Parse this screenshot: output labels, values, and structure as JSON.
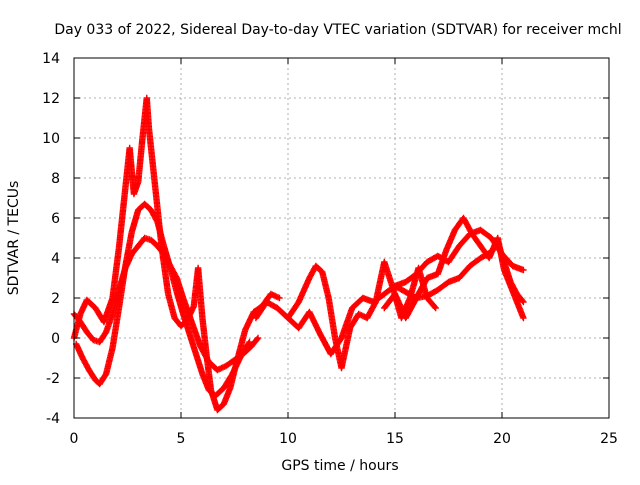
{
  "chart_data": {
    "type": "scatter",
    "title": "Day 033 of 2022, Sidereal Day-to-day VTEC variation (SDTVAR) for receiver mchl",
    "xlabel": "GPS time / hours",
    "ylabel": "SDTVAR / TECUs",
    "xlim": [
      0,
      25
    ],
    "ylim": [
      -4,
      14
    ],
    "xticks": [
      0,
      5,
      10,
      15,
      20,
      25
    ],
    "yticks": [
      -4,
      -2,
      0,
      2,
      4,
      6,
      8,
      10,
      12,
      14
    ],
    "grid": true,
    "legend": "none",
    "marker": "+",
    "marker_color": "#ff0000",
    "series": [
      {
        "name": "satellite-track-1",
        "x": [
          0.0,
          0.3,
          0.6,
          0.9,
          1.2,
          1.5,
          1.8,
          2.1,
          2.4,
          2.7,
          3.0,
          3.3,
          3.6,
          3.9,
          4.2,
          4.5,
          4.8,
          5.1,
          5.5,
          5.9,
          6.3,
          6.7,
          7.1,
          7.5,
          7.9,
          8.3,
          8.6
        ],
        "y": [
          1.2,
          0.8,
          0.3,
          -0.1,
          -0.2,
          0.3,
          1.2,
          2.4,
          3.5,
          4.2,
          4.6,
          5.0,
          4.9,
          4.6,
          4.2,
          3.6,
          3.0,
          2.0,
          0.8,
          -0.4,
          -1.2,
          -1.6,
          -1.4,
          -1.1,
          -0.8,
          -0.4,
          0.0
        ]
      },
      {
        "name": "satellite-track-2",
        "x": [
          0.1,
          0.4,
          0.7,
          1.0,
          1.2,
          1.5,
          1.8,
          2.1,
          2.4,
          2.7,
          3.0,
          3.3,
          3.6,
          3.9,
          4.2,
          4.5,
          4.8,
          5.1,
          5.4,
          5.7,
          6.0,
          6.3,
          6.6,
          7.0,
          7.4,
          7.8,
          8.2
        ],
        "y": [
          -0.3,
          -1.0,
          -1.6,
          -2.1,
          -2.3,
          -1.8,
          -0.5,
          1.5,
          3.6,
          5.3,
          6.4,
          6.7,
          6.4,
          5.8,
          4.6,
          3.5,
          2.3,
          1.2,
          0.2,
          -0.8,
          -1.8,
          -2.6,
          -2.9,
          -2.5,
          -1.8,
          -0.9,
          -0.2
        ]
      },
      {
        "name": "satellite-track-3",
        "x": [
          0.0,
          0.3,
          0.6,
          1.0,
          1.4,
          1.8,
          2.1,
          2.4,
          2.6,
          2.8,
          3.0,
          3.2,
          3.4,
          3.5,
          3.7,
          3.9,
          4.1,
          4.4,
          4.7,
          5.0,
          5.3,
          5.6,
          5.8,
          6.0,
          6.2,
          6.4,
          6.7,
          7.0,
          7.3,
          7.6,
          8.0,
          8.4,
          8.8,
          9.2,
          9.6
        ],
        "y": [
          0.0,
          1.2,
          1.9,
          1.5,
          0.8,
          2.0,
          4.5,
          7.5,
          9.5,
          7.2,
          7.8,
          10.0,
          12.0,
          10.5,
          8.5,
          6.5,
          4.5,
          2.2,
          1.0,
          0.6,
          0.9,
          1.6,
          3.5,
          1.0,
          -0.9,
          -2.6,
          -3.6,
          -3.3,
          -2.5,
          -1.2,
          0.4,
          1.3,
          1.6,
          2.2,
          2.0
        ]
      },
      {
        "name": "satellite-track-4",
        "x": [
          8.5,
          9.0,
          9.5,
          10.0,
          10.5,
          11.0,
          11.3,
          11.6,
          11.9,
          12.2,
          12.5,
          12.9,
          13.3,
          13.7,
          14.1,
          14.5,
          14.9,
          15.3,
          15.7,
          16.1,
          16.5,
          16.9
        ],
        "y": [
          1.0,
          1.8,
          1.5,
          1.0,
          1.8,
          3.0,
          3.6,
          3.3,
          2.0,
          0.0,
          -1.5,
          0.5,
          1.2,
          1.0,
          1.8,
          3.8,
          2.5,
          1.0,
          2.0,
          3.5,
          2.0,
          1.5
        ]
      },
      {
        "name": "satellite-track-5",
        "x": [
          10.0,
          10.5,
          11.0,
          11.5,
          12.0,
          12.5,
          13.0,
          13.5,
          14.0,
          14.5,
          15.0,
          15.5,
          16.0,
          16.5,
          17.0,
          17.5,
          18.0,
          18.5,
          19.0,
          19.5,
          20.0,
          20.5,
          21.0
        ],
        "y": [
          1.0,
          0.5,
          1.3,
          0.2,
          -0.8,
          0.0,
          1.5,
          2.0,
          1.8,
          2.2,
          2.6,
          2.8,
          3.2,
          3.8,
          4.1,
          3.8,
          4.6,
          5.2,
          5.4,
          5.0,
          4.2,
          3.6,
          3.4
        ]
      },
      {
        "name": "satellite-track-6",
        "x": [
          14.5,
          15.0,
          15.5,
          16.0,
          16.5,
          17.0,
          17.4,
          17.8,
          18.2,
          18.6,
          19.0,
          19.4,
          19.8,
          20.1,
          20.4,
          20.7,
          21.0
        ],
        "y": [
          1.5,
          2.2,
          1.0,
          2.0,
          3.0,
          3.2,
          4.4,
          5.4,
          6.0,
          5.2,
          4.6,
          4.0,
          5.0,
          3.4,
          2.6,
          1.8,
          1.0
        ]
      },
      {
        "name": "satellite-track-7",
        "x": [
          15.0,
          15.5,
          16.0,
          16.5,
          17.0,
          17.5,
          18.0,
          18.5,
          19.0,
          19.5,
          19.8,
          20.1,
          20.4,
          20.7,
          21.0
        ],
        "y": [
          2.6,
          2.3,
          2.0,
          2.1,
          2.4,
          2.8,
          3.0,
          3.6,
          4.0,
          4.3,
          4.8,
          3.8,
          2.8,
          2.2,
          1.8
        ]
      }
    ]
  }
}
